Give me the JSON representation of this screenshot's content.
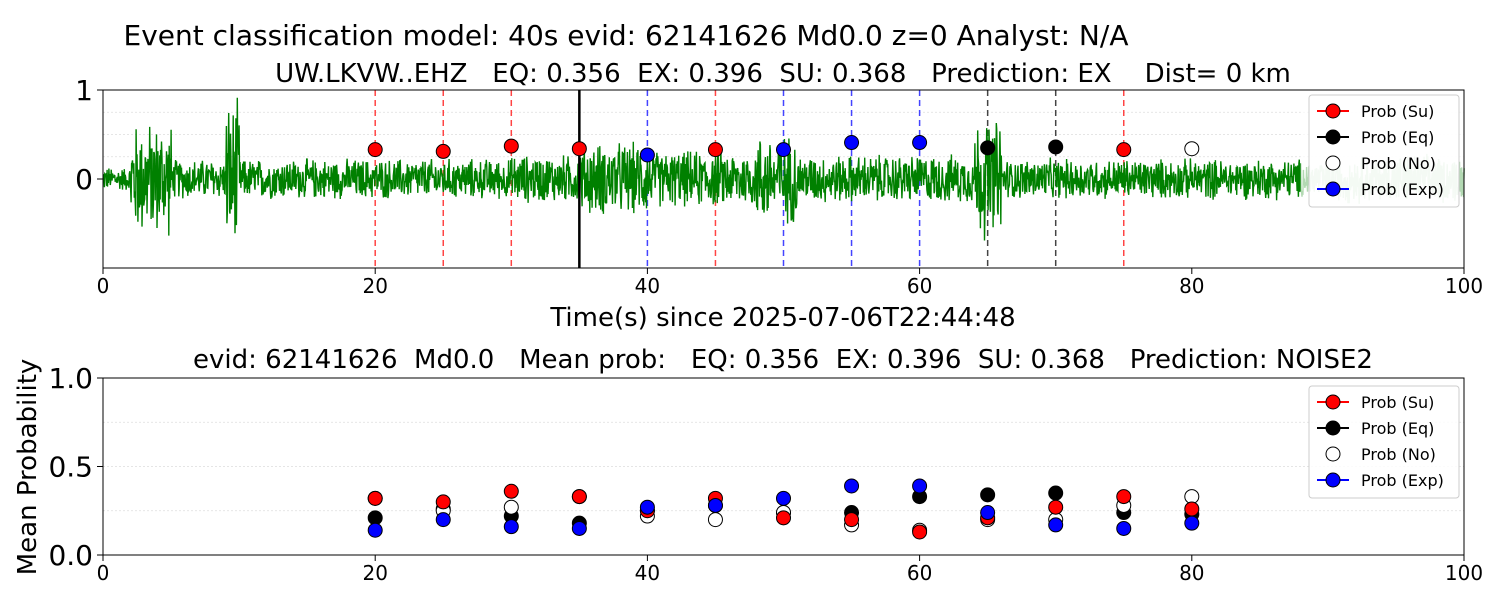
{
  "figure": {
    "suptitle": "Event classification model: 40s evid: 62141626 Md0.0 z=0 Analyst: N/A",
    "top_title": "UW.LKVW..EHZ   EQ: 0.356  EX: 0.396  SU: 0.368   Prediction: EX    Dist= 0 km",
    "top_xlabel": "Time(s) since 2025-07-06T22:44:48",
    "bottom_title": "evid: 62141626  Md0.0   Mean prob:   EQ: 0.356  EX: 0.396  SU: 0.368   Prediction: NOISE2",
    "bottom_ylabel": "Mean Probability"
  },
  "colors": {
    "waveform": "#008000",
    "su": "#ff0000",
    "eq": "#000000",
    "no": "#ffffff",
    "exp": "#0000ff",
    "vline_su": "#ff4444",
    "vline_exp": "#4444ff",
    "vline_eq": "#444444"
  },
  "chart_data": [
    {
      "type": "line",
      "name": "waveform panel",
      "xlim": [
        0,
        100
      ],
      "ylim": [
        -1,
        1
      ],
      "xticks": [
        "0",
        "20",
        "40",
        "60",
        "80",
        "100"
      ],
      "yticks": [
        "0",
        "1"
      ],
      "grid": true,
      "legend_position": "top-right",
      "legend": [
        "Prob (Su)",
        "Prob (Eq)",
        "Prob (No)",
        "Prob (Exp)"
      ],
      "waveform_amplitude_envelope": [
        {
          "x": [
            0,
            2
          ],
          "amp": 0.15
        },
        {
          "x": [
            2,
            5
          ],
          "amp": 0.7
        },
        {
          "x": [
            5,
            9
          ],
          "amp": 0.25
        },
        {
          "x": [
            9,
            10
          ],
          "amp": 0.95
        },
        {
          "x": [
            10,
            30
          ],
          "amp": 0.25
        },
        {
          "x": [
            30,
            35
          ],
          "amp": 0.3
        },
        {
          "x": [
            35,
            40
          ],
          "amp": 0.45
        },
        {
          "x": [
            40,
            48
          ],
          "amp": 0.35
        },
        {
          "x": [
            48,
            51
          ],
          "amp": 0.55
        },
        {
          "x": [
            51,
            64
          ],
          "amp": 0.3
        },
        {
          "x": [
            64,
            66
          ],
          "amp": 0.75
        },
        {
          "x": [
            66,
            90
          ],
          "amp": 0.25
        },
        {
          "x": [
            90,
            100
          ],
          "amp": 0.3
        }
      ],
      "analyst_pick_x": 35,
      "window_markers": [
        {
          "x": 20,
          "class": "su",
          "y": 0.33
        },
        {
          "x": 25,
          "class": "su",
          "y": 0.31
        },
        {
          "x": 30,
          "class": "su",
          "y": 0.37
        },
        {
          "x": 35,
          "class": "su",
          "y": 0.34
        },
        {
          "x": 40,
          "class": "exp",
          "y": 0.27
        },
        {
          "x": 45,
          "class": "su",
          "y": 0.33
        },
        {
          "x": 50,
          "class": "exp",
          "y": 0.33
        },
        {
          "x": 55,
          "class": "exp",
          "y": 0.41
        },
        {
          "x": 60,
          "class": "exp",
          "y": 0.41
        },
        {
          "x": 65,
          "class": "eq",
          "y": 0.35
        },
        {
          "x": 70,
          "class": "eq",
          "y": 0.36
        },
        {
          "x": 75,
          "class": "su",
          "y": 0.33
        },
        {
          "x": 80,
          "class": "no",
          "y": 0.34
        }
      ]
    },
    {
      "type": "scatter",
      "name": "mean probability panel",
      "xlim": [
        0,
        100
      ],
      "ylim": [
        0,
        1
      ],
      "xticks": [
        "0",
        "20",
        "40",
        "60",
        "80",
        "100"
      ],
      "yticks": [
        "0.0",
        "0.5",
        "1.0"
      ],
      "grid": true,
      "legend_position": "top-right",
      "x": [
        20,
        25,
        30,
        35,
        40,
        45,
        50,
        55,
        60,
        65,
        70,
        75,
        80
      ],
      "series": [
        {
          "name": "Prob (Su)",
          "key": "su",
          "values": [
            0.32,
            0.3,
            0.36,
            0.33,
            0.25,
            0.32,
            0.21,
            0.2,
            0.13,
            0.21,
            0.27,
            0.33,
            0.26
          ]
        },
        {
          "name": "Prob (Eq)",
          "key": "eq",
          "values": [
            0.21,
            0.26,
            0.22,
            0.18,
            0.25,
            0.28,
            0.24,
            0.24,
            0.33,
            0.34,
            0.35,
            0.24,
            0.23
          ]
        },
        {
          "name": "Prob (No)",
          "key": "no",
          "values": [
            0.32,
            0.25,
            0.27,
            0.33,
            0.22,
            0.2,
            0.24,
            0.17,
            0.14,
            0.2,
            0.2,
            0.28,
            0.33
          ]
        },
        {
          "name": "Prob (Exp)",
          "key": "exp",
          "values": [
            0.14,
            0.2,
            0.16,
            0.15,
            0.27,
            0.28,
            0.32,
            0.39,
            0.39,
            0.24,
            0.17,
            0.15,
            0.18
          ]
        }
      ]
    }
  ]
}
